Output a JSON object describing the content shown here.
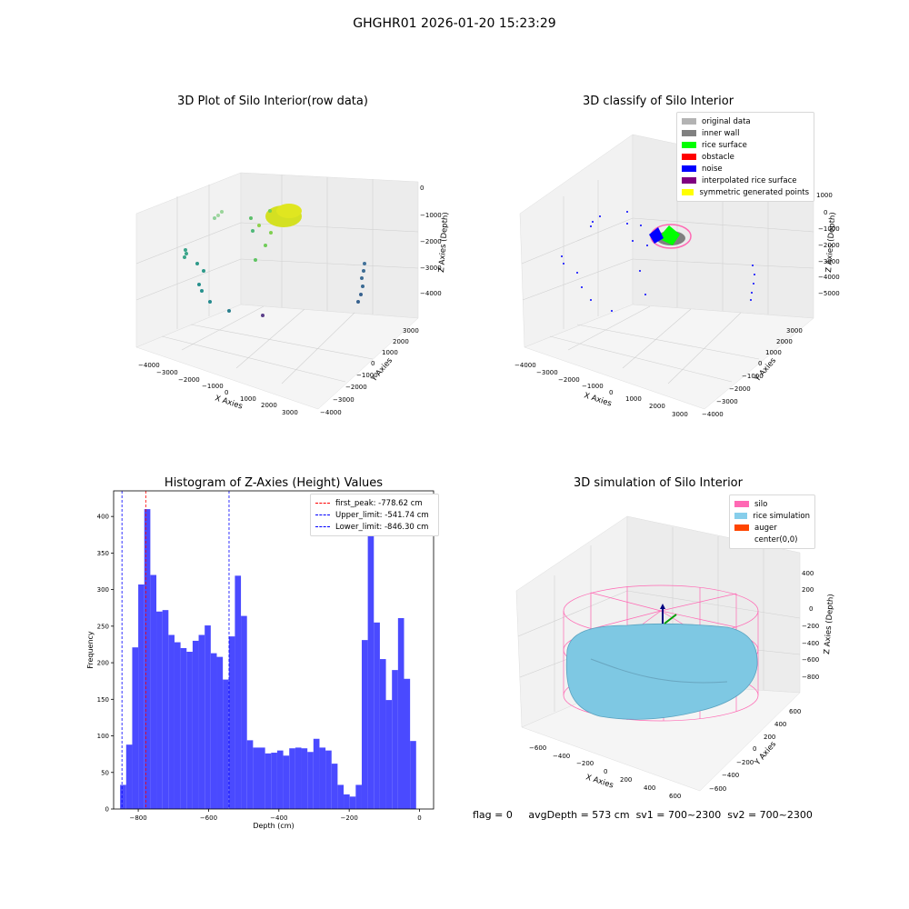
{
  "suptitle": "GHGHR01 2026-01-20 15:23:29",
  "panels": {
    "raw": {
      "title": "3D Plot of Silo Interior(row data)",
      "xlabel": "X Axies",
      "ylabel": "Y Axies",
      "zlabel": "Z Axies (Depth)",
      "xticks": [
        "−4000",
        "−3000",
        "−2000",
        "−1000",
        "0",
        "1000",
        "2000",
        "3000"
      ],
      "yticks": [
        "3000",
        "2000",
        "1000",
        "0",
        "−1000",
        "−2000",
        "−3000",
        "−4000"
      ],
      "zticks": [
        "0",
        "−1000",
        "−2000",
        "−3000",
        "−4000"
      ]
    },
    "classify": {
      "title": "3D classify of Silo Interior",
      "xlabel": "X Axies",
      "ylabel": "Y Axies",
      "zlabel": "Z Axies (Depth)",
      "xticks": [
        "−4000",
        "−3000",
        "−2000",
        "−1000",
        "0",
        "1000",
        "2000",
        "3000"
      ],
      "yticks": [
        "3000",
        "2000",
        "1000",
        "0",
        "−1000",
        "−2000",
        "−3000",
        "−4000"
      ],
      "zticks": [
        "1000",
        "0",
        "−1000",
        "−2000",
        "−3000",
        "−4000",
        "−5000"
      ],
      "legend": [
        {
          "label": "original data",
          "color": "#b3b3b3"
        },
        {
          "label": "inner wall",
          "color": "#808080"
        },
        {
          "label": "rice surface",
          "color": "#00ff00"
        },
        {
          "label": "obstacle",
          "color": "#ff0000"
        },
        {
          "label": "noise",
          "color": "#0000ff"
        },
        {
          "label": "interpolated rice surface",
          "color": "#800080"
        },
        {
          "label": "symmetric generated points",
          "color": "#ffff00"
        }
      ]
    },
    "simulation": {
      "title": "3D simulation of Silo Interior",
      "xlabel": "X Axies",
      "ylabel": "Y Axies",
      "zlabel": "Z Axies (Depth)",
      "xticks": [
        "−600",
        "−400",
        "−200",
        "0",
        "200",
        "400",
        "600"
      ],
      "yticks": [
        "600",
        "400",
        "200",
        "0",
        "−200",
        "−400",
        "−600"
      ],
      "zticks": [
        "400",
        "200",
        "0",
        "−200",
        "−400",
        "−600",
        "−800"
      ],
      "legend": [
        {
          "label": "silo",
          "color": "#ff69b4"
        },
        {
          "label": "rice simulation",
          "color": "#87ceeb"
        },
        {
          "label": "auger",
          "color": "#ff4500"
        },
        {
          "label": "center(0,0)",
          "color": ""
        }
      ]
    }
  },
  "footer": {
    "flag": "flag = 0",
    "avg": "avgDepth = 573 cm",
    "sv1": "sv1 = 700~2300",
    "sv2": "sv2 = 700~2300"
  },
  "chart_data": {
    "type": "bar",
    "title": "Histogram of Z-Axies (Height) Values",
    "xlabel": "Depth (cm)",
    "ylabel": "Frequency",
    "xlim": [
      -870,
      40
    ],
    "ylim": [
      0,
      435
    ],
    "xticks": [
      -800,
      -600,
      -400,
      -200,
      0
    ],
    "yticks": [
      0,
      50,
      100,
      150,
      200,
      250,
      300,
      350,
      400
    ],
    "bar_color": "#4a4aff",
    "bin_start": -851.5,
    "bin_width": 17.18,
    "values": [
      33,
      88,
      221,
      307,
      410,
      320,
      270,
      272,
      238,
      228,
      220,
      215,
      230,
      238,
      251,
      213,
      208,
      177,
      236,
      319,
      264,
      94,
      84,
      84,
      76,
      77,
      80,
      73,
      83,
      84,
      83,
      78,
      96,
      84,
      80,
      62,
      33,
      20,
      17,
      33,
      231,
      410,
      255,
      205,
      149,
      190,
      261,
      178,
      93,
      0
    ],
    "vlines": [
      {
        "label": "first_peak: -778.62 cm",
        "x": -778.62,
        "color": "#ff0000"
      },
      {
        "label": "Upper_limit: -541.74 cm",
        "x": -541.74,
        "color": "#0000ff"
      },
      {
        "label": "Lower_limit: -846.30 cm",
        "x": -846.3,
        "color": "#0000ff"
      }
    ],
    "legend_position": "top-right"
  }
}
